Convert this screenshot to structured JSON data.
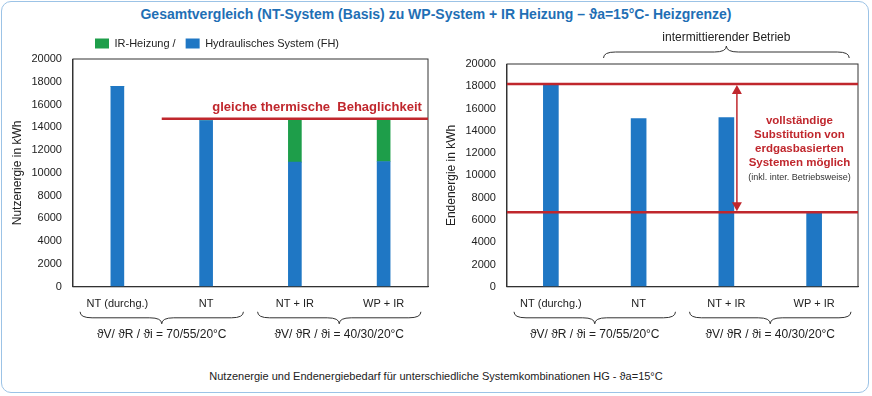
{
  "title": "Gesamtvergleich (NT-System (Basis) zu WP-System + IR Heizung –  ϑa=15°C- Heizgrenze)",
  "caption": "Nutzenergie und Endenergiebedarf für unterschiedliche Systemkombinationen HG - ϑa=15°C",
  "chart_data": [
    {
      "type": "bar",
      "stacked": true,
      "legend": "top",
      "grid": false,
      "categories": [
        "NT (durchg.)",
        "NT",
        "NT + IR",
        "WP + IR"
      ],
      "series": [
        {
          "name": "Hydraulisches System (FH)",
          "color": "#1f77c4",
          "values": [
            17600,
            14600,
            10950,
            11000
          ]
        },
        {
          "name": "IR-Heizung /",
          "color": "#1e9e4a",
          "values": [
            0,
            0,
            3800,
            3750
          ]
        }
      ],
      "y_label": "Nutzenergie in kWh",
      "ylim": [
        0,
        20000
      ],
      "yticks": [
        0,
        2000,
        4000,
        6000,
        8000,
        10000,
        12000,
        14000,
        16000,
        18000,
        20000
      ],
      "reference_lines": [
        {
          "value": 14750,
          "from": "NT",
          "color": "#c0272d",
          "label": "gleiche thermische  Behaglichkeit"
        }
      ],
      "groups": [
        {
          "label": "ϑV/ ϑR / ϑi = 70/55/20°C",
          "from": "NT (durchg.)",
          "to": "NT"
        },
        {
          "label": "ϑV/ ϑR / ϑi = 40/30/20°C",
          "from": "NT + IR",
          "to": "WP + IR"
        }
      ]
    },
    {
      "type": "bar",
      "grid": false,
      "categories": [
        "NT (durchg.)",
        "NT",
        "NT + IR",
        "WP + IR"
      ],
      "values": [
        18200,
        15100,
        15200,
        6700
      ],
      "color": "#1f77c4",
      "y_label": "Endenergie in kWh",
      "ylim": [
        0,
        20000
      ],
      "yticks": [
        0,
        2000,
        4000,
        6000,
        8000,
        10000,
        12000,
        14000,
        16000,
        18000,
        20000
      ],
      "reference_lines": [
        {
          "value": 18200,
          "from": "NT (durchg.)",
          "color": "#c0272d"
        },
        {
          "value": 6700,
          "from": "NT (durchg.)",
          "color": "#c0272d"
        }
      ],
      "annotation": {
        "text": [
          "vollständige",
          "Substitution von",
          "erdgasbasierten",
          "Systemen möglich"
        ],
        "note": "(inkl. inter. Betriebsweise)",
        "color": "#c0272d"
      },
      "brace": {
        "label": "intermittierender Betrieb",
        "from": "NT",
        "to": "WP + IR"
      },
      "groups": [
        {
          "label": "ϑV/ ϑR / ϑi = 70/55/20°C",
          "from": "NT (durchg.)",
          "to": "NT"
        },
        {
          "label": "ϑV/ ϑR / ϑi = 40/30/20°C",
          "from": "NT + IR",
          "to": "WP + IR"
        }
      ]
    }
  ]
}
